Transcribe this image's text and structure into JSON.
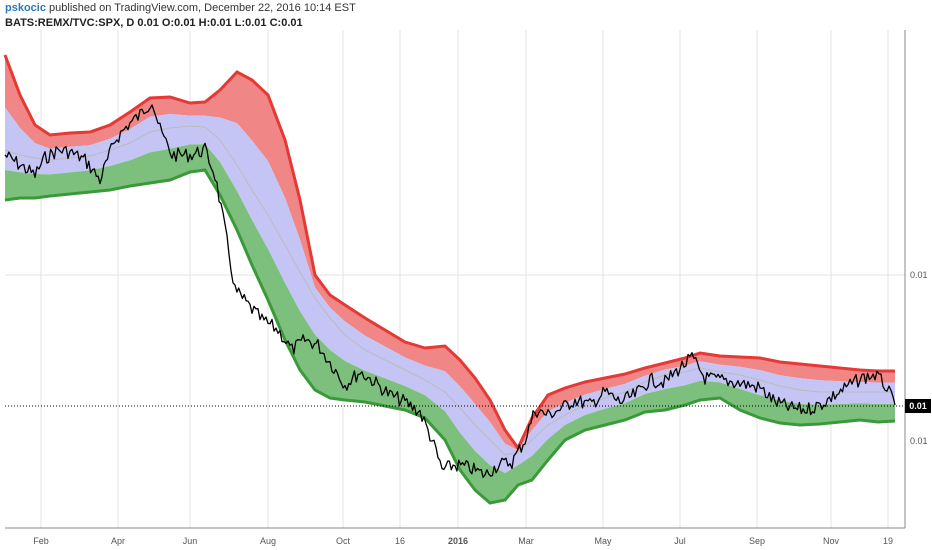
{
  "header": {
    "author": "pskocic",
    "published": "published on TradingView.com, December 22, 2016 10:14 EST",
    "symbol": "BATS:REMX/TVC:SPX, D",
    "ohlc": {
      "last": "0.01",
      "open_label": "O:",
      "open": "0.01",
      "high_label": "H:",
      "high": "0.01",
      "low_label": "L:",
      "low": "0.01",
      "close_label": "C:",
      "close": "0.01"
    }
  },
  "chart_data": {
    "type": "line",
    "title": "BATS:REMX/TVC:SPX, D",
    "xlabel": "",
    "ylabel": "",
    "x_tick_labels": [
      "Feb",
      "Apr",
      "Jun",
      "Aug",
      "Oct",
      "16",
      "2016",
      "Mar",
      "May",
      "Jul",
      "Sep",
      "Nov",
      "19"
    ],
    "y_tick_labels": [
      "0.01",
      "0.01"
    ],
    "last_value_label": "0.01",
    "colors": {
      "upper_band": "#e53935",
      "upper_fill": "#f08080",
      "middle_fill": "#c5c5f5",
      "lower_fill": "#7dc07d",
      "lower_band": "#3a9a3a",
      "price": "#000000",
      "midline": "#bbbbbb"
    },
    "grid": true,
    "series": [
      {
        "name": "",
        "role": "upper_band"
      },
      {
        "name": "",
        "role": "upper_channel"
      },
      {
        "name": "",
        "role": "basis"
      },
      {
        "name": "",
        "role": "lower_channel"
      },
      {
        "name": "",
        "role": "lower_band"
      },
      {
        "name": "",
        "role": "price"
      }
    ]
  }
}
